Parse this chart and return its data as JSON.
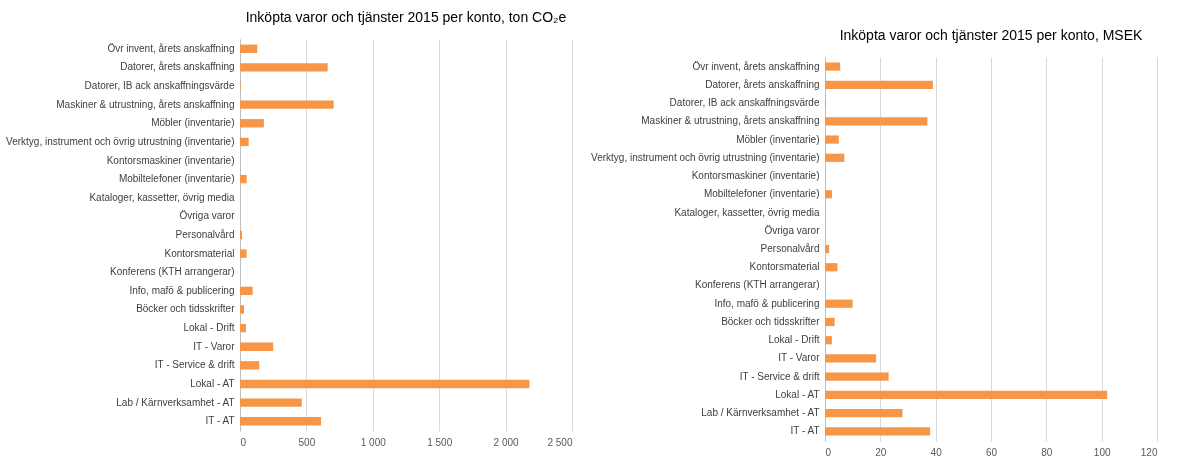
{
  "chart_data": [
    {
      "type": "bar",
      "orientation": "horizontal",
      "title": "Inköpta varor och tjänster 2015 per konto, ton CO₂e",
      "categories": [
        "Övr invent, årets anskaffning",
        "Datorer, årets anskaffning",
        "Datorer, IB ack anskaffningsvärde",
        "Maskiner & utrustning, årets anskaffning",
        "Möbler (inventarie)",
        "Verktyg, instrument och övrig utrustning (inventarie)",
        "Kontorsmaskiner (inventarie)",
        "Mobiltelefoner (inventarie)",
        "Kataloger, kassetter, övrig media",
        "Övriga varor",
        "Personalvård",
        "Kontorsmaterial",
        "Konferens (KTH arrangerar)",
        "Info, mafö & publicering",
        "Böcker och tidsskrifter",
        "Lokal - Drift",
        "IT - Varor",
        "IT - Service & drift",
        "Lokal - AT",
        "Lab / Kärnverksamhet - AT",
        "IT - AT"
      ],
      "values": [
        130,
        660,
        5,
        705,
        180,
        65,
        0,
        50,
        0,
        0,
        15,
        50,
        0,
        95,
        30,
        45,
        250,
        145,
        2180,
        465,
        610
      ],
      "color": "#f79646",
      "xlim": [
        0,
        2500
      ],
      "xticks": [
        0,
        500,
        {
          "value": 1000,
          "label": "1 000"
        },
        {
          "value": 1500,
          "label": "1 500"
        },
        {
          "value": 2000,
          "label": "2 000"
        },
        {
          "value": 2500,
          "label": "2 500"
        }
      ],
      "grid": true
    },
    {
      "type": "bar",
      "orientation": "horizontal",
      "title": "Inköpta varor och tjänster 2015 per konto, MSEK",
      "categories": [
        "Övr invent, årets anskaffning",
        "Datorer, årets anskaffning",
        "Datorer, IB ack anskaffningsvärde",
        "Maskiner & utrustning, årets anskaffning",
        "Möbler (inventarie)",
        "Verktyg, instrument och övrig utrustning (inventarie)",
        "Kontorsmaskiner (inventarie)",
        "Mobiltelefoner (inventarie)",
        "Kataloger, kassetter, övrig media",
        "Övriga varor",
        "Personalvård",
        "Kontorsmaterial",
        "Konferens (KTH arrangerar)",
        "Info, mafö & publicering",
        "Böcker och tidsskrifter",
        "Lokal - Drift",
        "IT - Varor",
        "IT - Service & drift",
        "Lokal - AT",
        "Lab / Kärnverksamhet - AT",
        "IT - AT"
      ],
      "values": [
        5.5,
        39,
        0.3,
        37,
        5,
        7,
        0,
        2.5,
        0,
        0,
        1.5,
        4.5,
        0,
        10,
        3.5,
        2.5,
        18.5,
        23,
        102,
        28,
        38
      ],
      "color": "#f79646",
      "xlim": [
        0,
        120
      ],
      "xticks": [
        0,
        20,
        40,
        60,
        80,
        100,
        120
      ],
      "grid": true
    }
  ]
}
